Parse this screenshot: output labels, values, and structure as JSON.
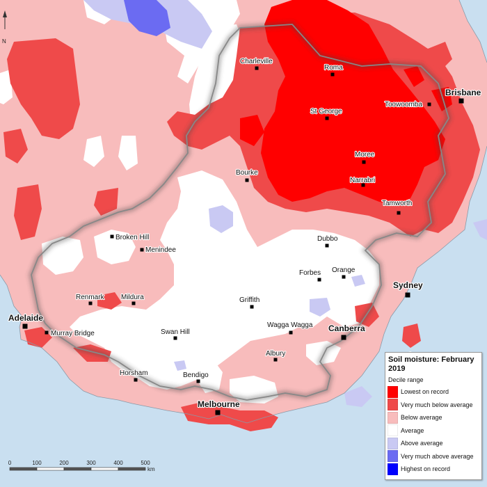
{
  "legend": {
    "title_line1": "Soil moisture: February",
    "title_line2": "2019",
    "subtitle": "Decile range",
    "items": [
      {
        "label": "Lowest on record",
        "color": "#ff0000"
      },
      {
        "label": "Very much below average",
        "color": "#ef4a4a"
      },
      {
        "label": "Below average",
        "color": "#f8bcbc"
      },
      {
        "label": "Average",
        "color": "#ffffff"
      },
      {
        "label": "Above average",
        "color": "#c9c9f3"
      },
      {
        "label": "Very much above average",
        "color": "#6b6bf2"
      },
      {
        "label": "Highest on record",
        "color": "#0000ff"
      }
    ]
  },
  "cities": [
    {
      "name": "Charleville"
    },
    {
      "name": "Roma"
    },
    {
      "name": "Brisbane"
    },
    {
      "name": "Toowoomba"
    },
    {
      "name": "St George"
    },
    {
      "name": "Moree"
    },
    {
      "name": "Narrabri"
    },
    {
      "name": "Bourke"
    },
    {
      "name": "Tamworth"
    },
    {
      "name": "Broken Hill"
    },
    {
      "name": "Menindee"
    },
    {
      "name": "Dubbo"
    },
    {
      "name": "Forbes"
    },
    {
      "name": "Orange"
    },
    {
      "name": "Sydney"
    },
    {
      "name": "Renmark"
    },
    {
      "name": "Mildura"
    },
    {
      "name": "Griffith"
    },
    {
      "name": "Adelaide"
    },
    {
      "name": "Murray Bridge"
    },
    {
      "name": "Swan Hill"
    },
    {
      "name": "Wagga Wagga"
    },
    {
      "name": "Canberra"
    },
    {
      "name": "Albury"
    },
    {
      "name": "Horsham"
    },
    {
      "name": "Bendigo"
    },
    {
      "name": "Melbourne"
    }
  ],
  "scale_bar": {
    "ticks": [
      "0",
      "100",
      "200",
      "300",
      "400",
      "500"
    ],
    "unit": "km"
  },
  "north_arrow": "N"
}
